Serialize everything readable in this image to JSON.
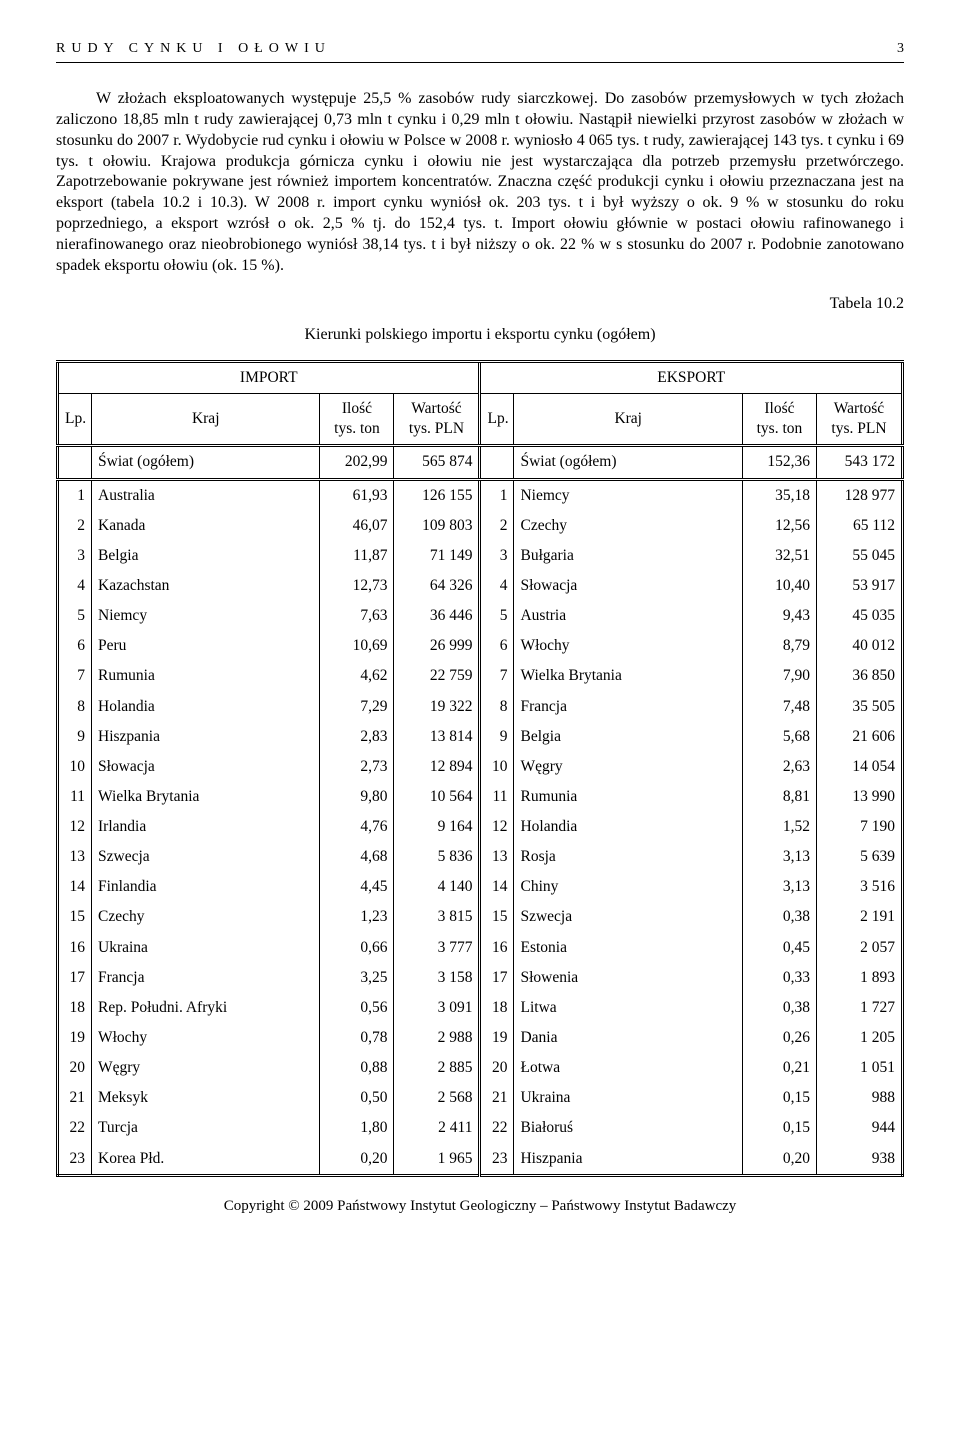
{
  "header": {
    "title": "RUDY CYNKU I OŁOWIU",
    "page_number": "3"
  },
  "body_paragraph": "W złożach eksploatowanych występuje 25,5 % zasobów rudy siarczkowej. Do zasobów przemysłowych w tych złożach zaliczono 18,85 mln t rudy zawierającej 0,73 mln t cynku i 0,29 mln t ołowiu. Nastąpił niewielki przyrost zasobów w złożach w stosunku do 2007 r. Wydobycie rud cynku i ołowiu w Polsce w 2008 r. wyniosło 4 065 tys. t rudy, zawierającej 143 tys. t cynku i 69 tys. t ołowiu. Krajowa produkcja górnicza cynku i ołowiu nie jest wystarczająca dla potrzeb przemysłu przetwórczego. Zapotrzebowanie pokrywane jest również importem koncentratów. Znaczna część produkcji cynku i ołowiu przeznaczana jest na eksport (tabela 10.2 i 10.3). W 2008 r. import cynku wyniósł ok. 203 tys. t i był wyższy o ok. 9 % w stosunku do roku poprzedniego, a eksport wzrósł o ok. 2,5 % tj. do 152,4 tys. t. Import ołowiu głównie w postaci ołowiu rafinowanego i nierafinowanego oraz nieobrobionego wyniósł 38,14 tys. t i był niższy o ok. 22 % w s stosunku do 2007 r. Podobnie zanotowano spadek eksportu ołowiu (ok. 15 %).",
  "table": {
    "label": "Tabela  10.2",
    "title": "Kierunki polskiego importu i eksportu cynku (ogółem)",
    "group_headers": {
      "import": "IMPORT",
      "export": "EKSPORT"
    },
    "col_headers": {
      "lp": "Lp.",
      "kraj": "Kraj",
      "ilosc": "Ilość",
      "ilosc_unit": "tys. ton",
      "wartosc": "Wartość",
      "wartosc_unit": "tys. PLN"
    },
    "totals": {
      "import": {
        "kraj": "Świat (ogółem)",
        "ilosc": "202,99",
        "wartosc": "565 874"
      },
      "export": {
        "kraj": "Świat (ogółem)",
        "ilosc": "152,36",
        "wartosc": "543 172"
      }
    },
    "rows": [
      {
        "lp": "1",
        "ik": "Australia",
        "ii": "61,93",
        "iv": "126 155",
        "ek": "Niemcy",
        "ei": "35,18",
        "ev": "128 977"
      },
      {
        "lp": "2",
        "ik": "Kanada",
        "ii": "46,07",
        "iv": "109 803",
        "ek": "Czechy",
        "ei": "12,56",
        "ev": "65 112"
      },
      {
        "lp": "3",
        "ik": "Belgia",
        "ii": "11,87",
        "iv": "71 149",
        "ek": "Bułgaria",
        "ei": "32,51",
        "ev": "55 045"
      },
      {
        "lp": "4",
        "ik": "Kazachstan",
        "ii": "12,73",
        "iv": "64 326",
        "ek": "Słowacja",
        "ei": "10,40",
        "ev": "53 917"
      },
      {
        "lp": "5",
        "ik": "Niemcy",
        "ii": "7,63",
        "iv": "36 446",
        "ek": "Austria",
        "ei": "9,43",
        "ev": "45 035"
      },
      {
        "lp": "6",
        "ik": "Peru",
        "ii": "10,69",
        "iv": "26 999",
        "ek": "Włochy",
        "ei": "8,79",
        "ev": "40 012"
      },
      {
        "lp": "7",
        "ik": "Rumunia",
        "ii": "4,62",
        "iv": "22 759",
        "ek": "Wielka Brytania",
        "ei": "7,90",
        "ev": "36 850"
      },
      {
        "lp": "8",
        "ik": "Holandia",
        "ii": "7,29",
        "iv": "19 322",
        "ek": "Francja",
        "ei": "7,48",
        "ev": "35 505"
      },
      {
        "lp": "9",
        "ik": "Hiszpania",
        "ii": "2,83",
        "iv": "13 814",
        "ek": "Belgia",
        "ei": "5,68",
        "ev": "21 606"
      },
      {
        "lp": "10",
        "ik": "Słowacja",
        "ii": "2,73",
        "iv": "12 894",
        "ek": "Węgry",
        "ei": "2,63",
        "ev": "14 054"
      },
      {
        "lp": "11",
        "ik": "Wielka Brytania",
        "ii": "9,80",
        "iv": "10 564",
        "ek": "Rumunia",
        "ei": "8,81",
        "ev": "13 990"
      },
      {
        "lp": "12",
        "ik": "Irlandia",
        "ii": "4,76",
        "iv": "9 164",
        "ek": "Holandia",
        "ei": "1,52",
        "ev": "7 190"
      },
      {
        "lp": "13",
        "ik": "Szwecja",
        "ii": "4,68",
        "iv": "5 836",
        "ek": "Rosja",
        "ei": "3,13",
        "ev": "5 639"
      },
      {
        "lp": "14",
        "ik": "Finlandia",
        "ii": "4,45",
        "iv": "4 140",
        "ek": "Chiny",
        "ei": "3,13",
        "ev": "3 516"
      },
      {
        "lp": "15",
        "ik": "Czechy",
        "ii": "1,23",
        "iv": "3 815",
        "ek": "Szwecja",
        "ei": "0,38",
        "ev": "2 191"
      },
      {
        "lp": "16",
        "ik": "Ukraina",
        "ii": "0,66",
        "iv": "3 777",
        "ek": "Estonia",
        "ei": "0,45",
        "ev": "2 057"
      },
      {
        "lp": "17",
        "ik": "Francja",
        "ii": "3,25",
        "iv": "3 158",
        "ek": "Słowenia",
        "ei": "0,33",
        "ev": "1 893"
      },
      {
        "lp": "18",
        "ik": "Rep. Południ. Afryki",
        "ii": "0,56",
        "iv": "3 091",
        "ek": "Litwa",
        "ei": "0,38",
        "ev": "1 727",
        "small": true
      },
      {
        "lp": "19",
        "ik": "Włochy",
        "ii": "0,78",
        "iv": "2 988",
        "ek": "Dania",
        "ei": "0,26",
        "ev": "1 205"
      },
      {
        "lp": "20",
        "ik": "Węgry",
        "ii": "0,88",
        "iv": "2 885",
        "ek": "Łotwa",
        "ei": "0,21",
        "ev": "1 051"
      },
      {
        "lp": "21",
        "ik": "Meksyk",
        "ii": "0,50",
        "iv": "2 568",
        "ek": "Ukraina",
        "ei": "0,15",
        "ev": "988"
      },
      {
        "lp": "22",
        "ik": "Turcja",
        "ii": "1,80",
        "iv": "2 411",
        "ek": "Białoruś",
        "ei": "0,15",
        "ev": "944"
      },
      {
        "lp": "23",
        "ik": "Korea Płd.",
        "ii": "0,20",
        "iv": "1 965",
        "ek": "Hiszpania",
        "ei": "0,20",
        "ev": "938"
      }
    ]
  },
  "footer": "Copyright © 2009 Państwowy Instytut Geologiczny – Państwowy Instytut Badawczy"
}
